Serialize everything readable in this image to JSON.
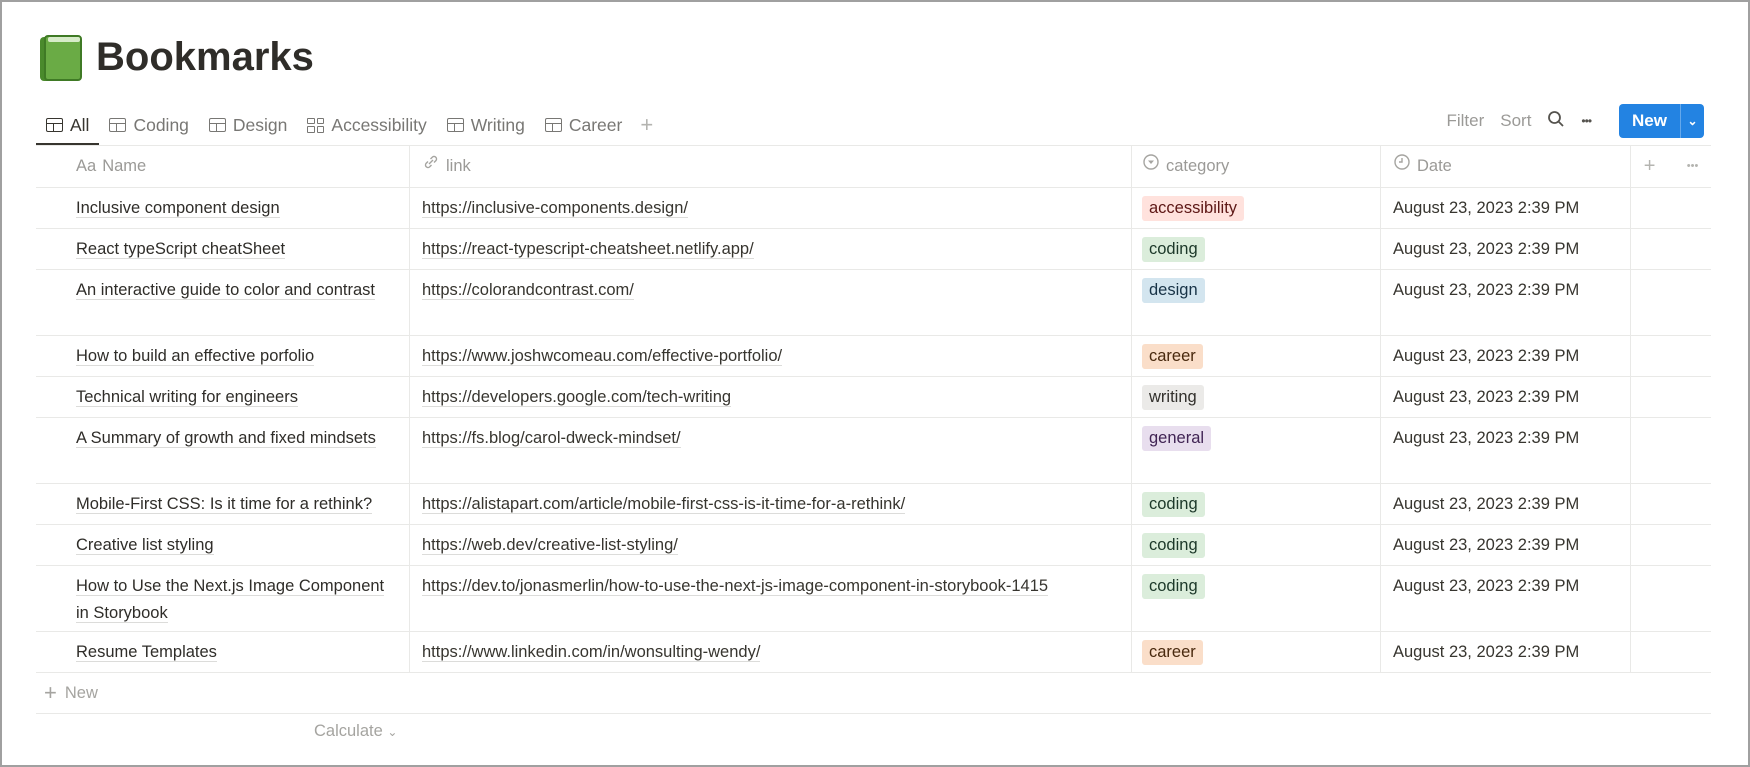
{
  "page": {
    "title": "Bookmarks",
    "icon": "green-book-icon"
  },
  "tabs": [
    {
      "label": "All",
      "icon": "table-icon",
      "active": true
    },
    {
      "label": "Coding",
      "icon": "table-icon"
    },
    {
      "label": "Design",
      "icon": "table-icon"
    },
    {
      "label": "Accessibility",
      "icon": "gallery-icon"
    },
    {
      "label": "Writing",
      "icon": "table-icon"
    },
    {
      "label": "Career",
      "icon": "table-icon"
    }
  ],
  "toolbar": {
    "filter": "Filter",
    "sort": "Sort",
    "more": "•••",
    "new": "New"
  },
  "columns": {
    "name_prefix": "Aa",
    "name": "Name",
    "link": "link",
    "category": "category",
    "date": "Date"
  },
  "tag_colors": {
    "accessibility": {
      "bg": "#ffe2dd",
      "fg": "#5d1715"
    },
    "coding": {
      "bg": "#dbeddb",
      "fg": "#1c3829"
    },
    "design": {
      "bg": "#d3e5ef",
      "fg": "#183347"
    },
    "career": {
      "bg": "#fadec9",
      "fg": "#49290e"
    },
    "writing": {
      "bg": "#ebeae8",
      "fg": "#32302c"
    },
    "general": {
      "bg": "#e8deee",
      "fg": "#412454"
    }
  },
  "rows": [
    {
      "name": "Inclusive component design",
      "link": "https://inclusive-components.design/",
      "category": "accessibility",
      "date": "August 23, 2023 2:39 PM"
    },
    {
      "name": "React typeScript cheatSheet",
      "link": "https://react-typescript-cheatsheet.netlify.app/",
      "category": "coding",
      "date": "August 23, 2023 2:39 PM"
    },
    {
      "name": "An interactive guide to color and contrast",
      "link": "https://colorandcontrast.com/",
      "category": "design",
      "date": "August 23, 2023 2:39 PM",
      "tall": true
    },
    {
      "name": "How to build an effective porfolio",
      "link": "https://www.joshwcomeau.com/effective-portfolio/",
      "category": "career",
      "date": "August 23, 2023 2:39 PM"
    },
    {
      "name": "Technical writing for engineers",
      "link": "https://developers.google.com/tech-writing",
      "category": "writing",
      "date": "August 23, 2023 2:39 PM"
    },
    {
      "name": "A Summary of growth and fixed mindsets",
      "link": "https://fs.blog/carol-dweck-mindset/",
      "category": "general",
      "date": "August 23, 2023 2:39 PM",
      "tall": true
    },
    {
      "name": "Mobile-First CSS: Is it time for a rethink?",
      "link": "https://alistapart.com/article/mobile-first-css-is-it-time-for-a-rethink/",
      "category": "coding",
      "date": "August 23, 2023 2:39 PM"
    },
    {
      "name": "Creative list styling",
      "link": "https://web.dev/creative-list-styling/",
      "category": "coding",
      "date": "August 23, 2023 2:39 PM"
    },
    {
      "name": "How to Use the Next.js Image Component in Storybook",
      "link": "https://dev.to/jonasmerlin/how-to-use-the-next-js-image-component-in-storybook-1415",
      "category": "coding",
      "date": "August 23, 2023 2:39 PM",
      "tall": true
    },
    {
      "name": "Resume Templates",
      "link": "https://www.linkedin.com/in/wonsulting-wendy/",
      "category": "career",
      "date": "August 23, 2023 2:39 PM"
    }
  ],
  "footer": {
    "new_row": "New",
    "calculate": "Calculate"
  }
}
